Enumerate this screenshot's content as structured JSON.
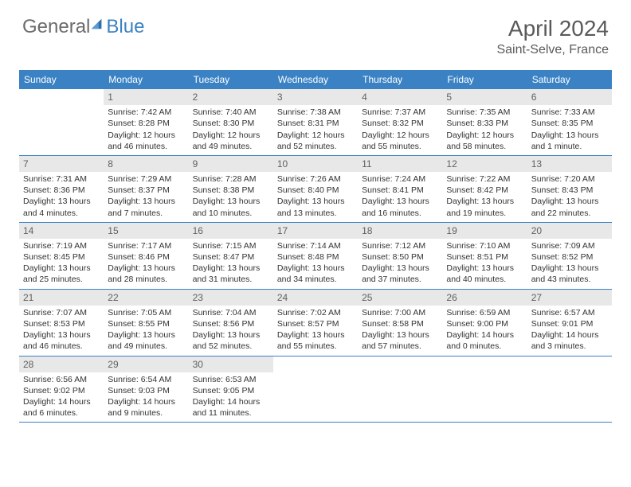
{
  "logo": {
    "part1": "General",
    "part2": "Blue"
  },
  "title": "April 2024",
  "location": "Saint-Selve, France",
  "colors": {
    "header_bg": "#3b82c4",
    "header_text": "#ffffff",
    "daynum_bg": "#e8e8e8",
    "daynum_text": "#606060",
    "body_text": "#333333",
    "title_text": "#5a5a5a",
    "rule": "#3b82c4"
  },
  "weekdays": [
    "Sunday",
    "Monday",
    "Tuesday",
    "Wednesday",
    "Thursday",
    "Friday",
    "Saturday"
  ],
  "weeks": [
    [
      {
        "n": "",
        "sun": "",
        "set": "",
        "day": ""
      },
      {
        "n": "1",
        "sun": "Sunrise: 7:42 AM",
        "set": "Sunset: 8:28 PM",
        "day": "Daylight: 12 hours and 46 minutes."
      },
      {
        "n": "2",
        "sun": "Sunrise: 7:40 AM",
        "set": "Sunset: 8:30 PM",
        "day": "Daylight: 12 hours and 49 minutes."
      },
      {
        "n": "3",
        "sun": "Sunrise: 7:38 AM",
        "set": "Sunset: 8:31 PM",
        "day": "Daylight: 12 hours and 52 minutes."
      },
      {
        "n": "4",
        "sun": "Sunrise: 7:37 AM",
        "set": "Sunset: 8:32 PM",
        "day": "Daylight: 12 hours and 55 minutes."
      },
      {
        "n": "5",
        "sun": "Sunrise: 7:35 AM",
        "set": "Sunset: 8:33 PM",
        "day": "Daylight: 12 hours and 58 minutes."
      },
      {
        "n": "6",
        "sun": "Sunrise: 7:33 AM",
        "set": "Sunset: 8:35 PM",
        "day": "Daylight: 13 hours and 1 minute."
      }
    ],
    [
      {
        "n": "7",
        "sun": "Sunrise: 7:31 AM",
        "set": "Sunset: 8:36 PM",
        "day": "Daylight: 13 hours and 4 minutes."
      },
      {
        "n": "8",
        "sun": "Sunrise: 7:29 AM",
        "set": "Sunset: 8:37 PM",
        "day": "Daylight: 13 hours and 7 minutes."
      },
      {
        "n": "9",
        "sun": "Sunrise: 7:28 AM",
        "set": "Sunset: 8:38 PM",
        "day": "Daylight: 13 hours and 10 minutes."
      },
      {
        "n": "10",
        "sun": "Sunrise: 7:26 AM",
        "set": "Sunset: 8:40 PM",
        "day": "Daylight: 13 hours and 13 minutes."
      },
      {
        "n": "11",
        "sun": "Sunrise: 7:24 AM",
        "set": "Sunset: 8:41 PM",
        "day": "Daylight: 13 hours and 16 minutes."
      },
      {
        "n": "12",
        "sun": "Sunrise: 7:22 AM",
        "set": "Sunset: 8:42 PM",
        "day": "Daylight: 13 hours and 19 minutes."
      },
      {
        "n": "13",
        "sun": "Sunrise: 7:20 AM",
        "set": "Sunset: 8:43 PM",
        "day": "Daylight: 13 hours and 22 minutes."
      }
    ],
    [
      {
        "n": "14",
        "sun": "Sunrise: 7:19 AM",
        "set": "Sunset: 8:45 PM",
        "day": "Daylight: 13 hours and 25 minutes."
      },
      {
        "n": "15",
        "sun": "Sunrise: 7:17 AM",
        "set": "Sunset: 8:46 PM",
        "day": "Daylight: 13 hours and 28 minutes."
      },
      {
        "n": "16",
        "sun": "Sunrise: 7:15 AM",
        "set": "Sunset: 8:47 PM",
        "day": "Daylight: 13 hours and 31 minutes."
      },
      {
        "n": "17",
        "sun": "Sunrise: 7:14 AM",
        "set": "Sunset: 8:48 PM",
        "day": "Daylight: 13 hours and 34 minutes."
      },
      {
        "n": "18",
        "sun": "Sunrise: 7:12 AM",
        "set": "Sunset: 8:50 PM",
        "day": "Daylight: 13 hours and 37 minutes."
      },
      {
        "n": "19",
        "sun": "Sunrise: 7:10 AM",
        "set": "Sunset: 8:51 PM",
        "day": "Daylight: 13 hours and 40 minutes."
      },
      {
        "n": "20",
        "sun": "Sunrise: 7:09 AM",
        "set": "Sunset: 8:52 PM",
        "day": "Daylight: 13 hours and 43 minutes."
      }
    ],
    [
      {
        "n": "21",
        "sun": "Sunrise: 7:07 AM",
        "set": "Sunset: 8:53 PM",
        "day": "Daylight: 13 hours and 46 minutes."
      },
      {
        "n": "22",
        "sun": "Sunrise: 7:05 AM",
        "set": "Sunset: 8:55 PM",
        "day": "Daylight: 13 hours and 49 minutes."
      },
      {
        "n": "23",
        "sun": "Sunrise: 7:04 AM",
        "set": "Sunset: 8:56 PM",
        "day": "Daylight: 13 hours and 52 minutes."
      },
      {
        "n": "24",
        "sun": "Sunrise: 7:02 AM",
        "set": "Sunset: 8:57 PM",
        "day": "Daylight: 13 hours and 55 minutes."
      },
      {
        "n": "25",
        "sun": "Sunrise: 7:00 AM",
        "set": "Sunset: 8:58 PM",
        "day": "Daylight: 13 hours and 57 minutes."
      },
      {
        "n": "26",
        "sun": "Sunrise: 6:59 AM",
        "set": "Sunset: 9:00 PM",
        "day": "Daylight: 14 hours and 0 minutes."
      },
      {
        "n": "27",
        "sun": "Sunrise: 6:57 AM",
        "set": "Sunset: 9:01 PM",
        "day": "Daylight: 14 hours and 3 minutes."
      }
    ],
    [
      {
        "n": "28",
        "sun": "Sunrise: 6:56 AM",
        "set": "Sunset: 9:02 PM",
        "day": "Daylight: 14 hours and 6 minutes."
      },
      {
        "n": "29",
        "sun": "Sunrise: 6:54 AM",
        "set": "Sunset: 9:03 PM",
        "day": "Daylight: 14 hours and 9 minutes."
      },
      {
        "n": "30",
        "sun": "Sunrise: 6:53 AM",
        "set": "Sunset: 9:05 PM",
        "day": "Daylight: 14 hours and 11 minutes."
      },
      {
        "n": "",
        "sun": "",
        "set": "",
        "day": ""
      },
      {
        "n": "",
        "sun": "",
        "set": "",
        "day": ""
      },
      {
        "n": "",
        "sun": "",
        "set": "",
        "day": ""
      },
      {
        "n": "",
        "sun": "",
        "set": "",
        "day": ""
      }
    ]
  ]
}
